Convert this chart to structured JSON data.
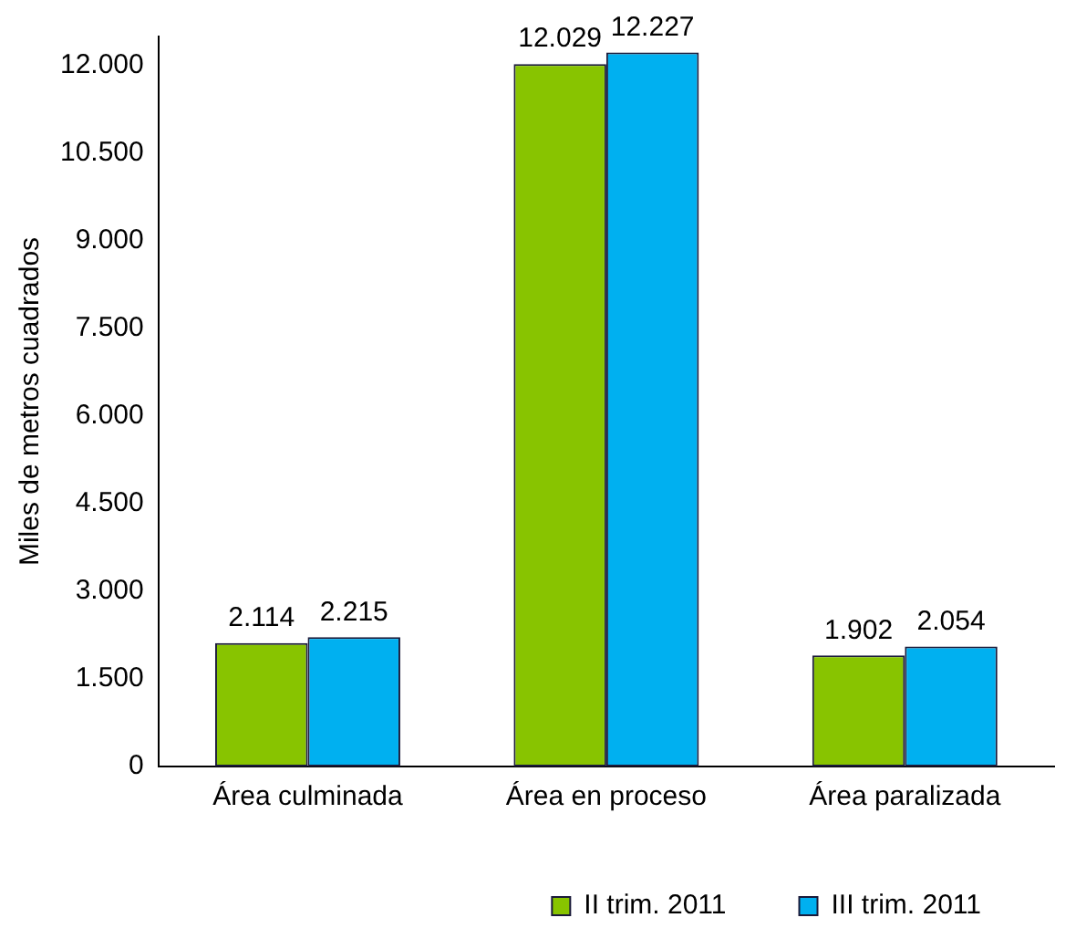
{
  "chart_data": {
    "type": "bar",
    "ylabel": "Miles de metros cuadrados",
    "categories": [
      "Área culminada",
      "Área en proceso",
      "Área paralizada"
    ],
    "series": [
      {
        "name": "II trim. 2011",
        "color": "#88c400",
        "values": [
          2114,
          12029,
          1902
        ],
        "value_labels": [
          "2.114",
          "12.029",
          "1.902"
        ]
      },
      {
        "name": "III trim. 2011",
        "color": "#00b0f0",
        "values": [
          2215,
          12227,
          2054
        ],
        "value_labels": [
          "2.215",
          "12.227",
          "2.054"
        ]
      }
    ],
    "ylim": [
      0,
      12500
    ],
    "yticks": [
      {
        "value": 0,
        "label": "0"
      },
      {
        "value": 1500,
        "label": "1.500"
      },
      {
        "value": 3000,
        "label": "3.000"
      },
      {
        "value": 4500,
        "label": "4.500"
      },
      {
        "value": 6000,
        "label": "6.000"
      },
      {
        "value": 7500,
        "label": "7.500"
      },
      {
        "value": 9000,
        "label": "9.000"
      },
      {
        "value": 10500,
        "label": "10.500"
      },
      {
        "value": 12000,
        "label": "12.000"
      }
    ],
    "grid": false,
    "legend": "bottom"
  }
}
